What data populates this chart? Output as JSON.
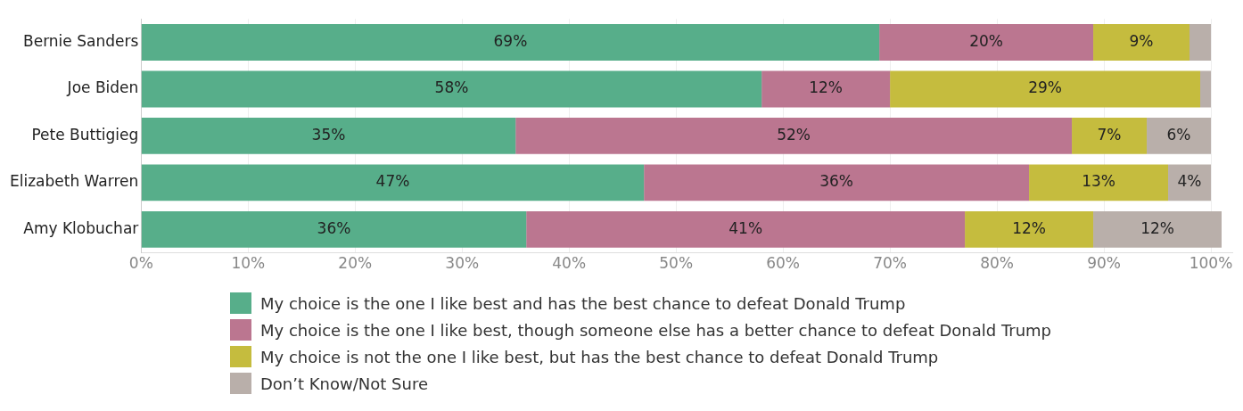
{
  "chart_data": {
    "type": "bar",
    "orientation": "horizontal",
    "stacked": true,
    "categories": [
      "Bernie Sanders",
      "Joe Biden",
      "Pete Buttigieg",
      "Elizabeth Warren",
      "Amy Klobuchar"
    ],
    "series": [
      {
        "name": "My choice is the one I like best and has the best chance to defeat Donald Trump",
        "color": "#57ae8a",
        "values": [
          69,
          58,
          35,
          47,
          36
        ],
        "value_labels": [
          "69%",
          "58%",
          "35%",
          "47%",
          "36%"
        ]
      },
      {
        "name": "My choice is the one I like best, though someone else has a better chance to defeat Donald Trump",
        "color": "#bb7690",
        "values": [
          20,
          12,
          52,
          36,
          41
        ],
        "value_labels": [
          "20%",
          "12%",
          "52%",
          "36%",
          "41%"
        ]
      },
      {
        "name": "My choice is not the one I like best, but has the best chance to defeat Donald Trump",
        "color": "#c5bc3e",
        "values": [
          9,
          29,
          7,
          13,
          12
        ],
        "value_labels": [
          "9%",
          "29%",
          "7%",
          "13%",
          "12%"
        ]
      },
      {
        "name": "Don’t Know/Not Sure",
        "color": "#b9afaa",
        "values": [
          2,
          1,
          6,
          4,
          12
        ],
        "value_labels": [
          null,
          null,
          "6%",
          "4%",
          "12%"
        ]
      }
    ],
    "xlim": [
      0,
      102
    ],
    "xticks": [
      {
        "value": 0,
        "label": "0%"
      },
      {
        "value": 10,
        "label": "10%"
      },
      {
        "value": 20,
        "label": "20%"
      },
      {
        "value": 30,
        "label": "30%"
      },
      {
        "value": 40,
        "label": "40%"
      },
      {
        "value": 50,
        "label": "50%"
      },
      {
        "value": 60,
        "label": "60%"
      },
      {
        "value": 70,
        "label": "70%"
      },
      {
        "value": 80,
        "label": "80%"
      },
      {
        "value": 90,
        "label": "90%"
      },
      {
        "value": 100,
        "label": "100%"
      }
    ],
    "grid": "x",
    "legend": "bottom"
  }
}
